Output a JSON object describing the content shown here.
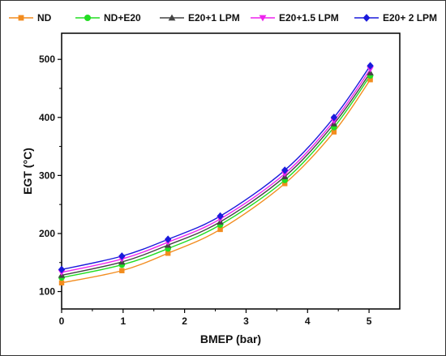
{
  "chart_data": {
    "type": "line",
    "title": "",
    "xlabel": "BMEP (bar)",
    "ylabel": "EGT (°C)",
    "xlim": [
      0,
      5.5
    ],
    "ylim": [
      70,
      545
    ],
    "xticks": [
      "0",
      "1",
      "2",
      "3",
      "4",
      "5"
    ],
    "yticks": [
      "100",
      "200",
      "300",
      "400",
      "500"
    ],
    "grid": false,
    "legend_position": "top",
    "x": [
      0,
      0.98,
      1.73,
      2.58,
      3.63,
      4.43,
      5.02
    ],
    "series": [
      {
        "name": "ND",
        "color": "#f28c1e",
        "marker": "square",
        "values": [
          115,
          136,
          166,
          207,
          286,
          375,
          465
        ]
      },
      {
        "name": "ND+E20",
        "color": "#22dd22",
        "marker": "circle",
        "values": [
          124,
          146,
          174,
          215,
          292,
          383,
          472
        ]
      },
      {
        "name": "E20+1 LPM",
        "color": "#444444",
        "marker": "triangle-up",
        "values": [
          128,
          151,
          180,
          220,
          298,
          389,
          477
        ]
      },
      {
        "name": "E20+1.5 LPM",
        "color": "#ee22ee",
        "marker": "triangle-down",
        "values": [
          133,
          156,
          185,
          225,
          303,
          394,
          483
        ]
      },
      {
        "name": "E20+ 2 LPM",
        "color": "#1a1adc",
        "marker": "diamond",
        "values": [
          138,
          161,
          190,
          230,
          309,
          400,
          489
        ]
      }
    ]
  }
}
